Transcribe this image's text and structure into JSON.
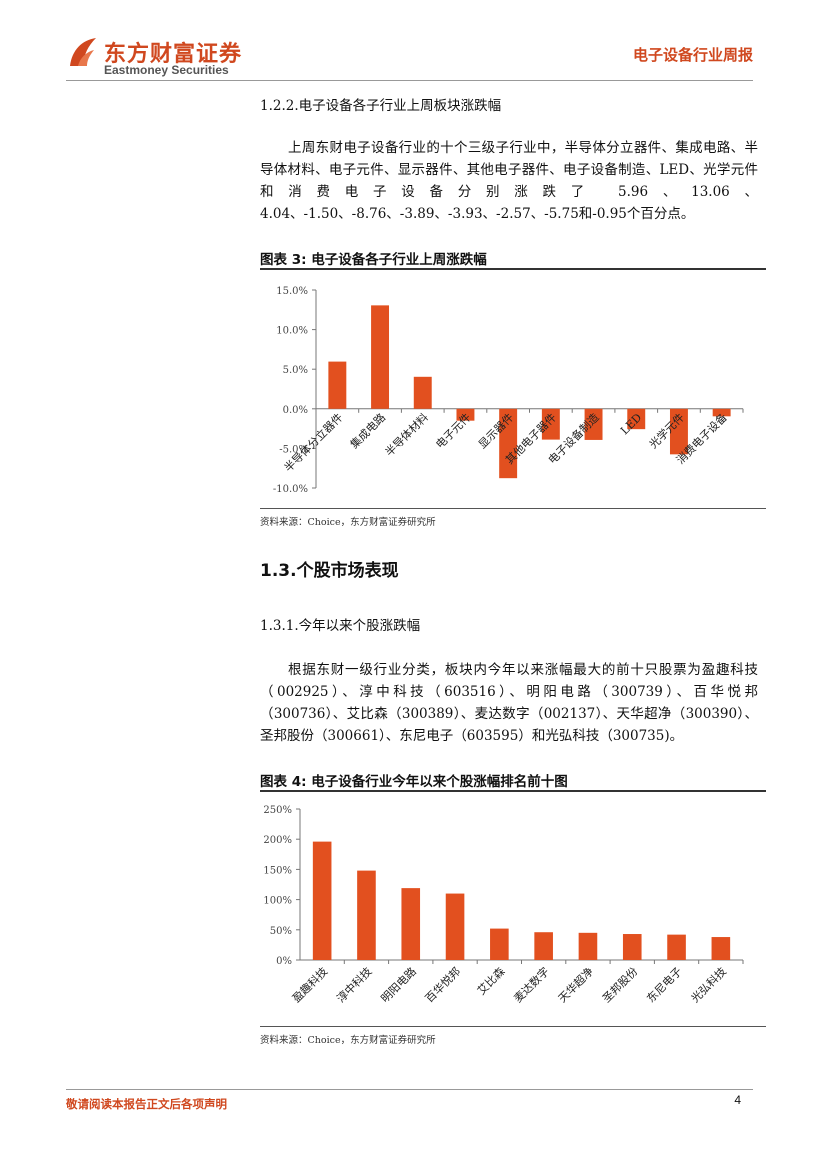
{
  "header": {
    "logo_cn": "东方财富证券",
    "logo_en": "Eastmoney Securities",
    "report_type": "电子设备行业周报"
  },
  "section_1_2_2": {
    "heading": "1.2.2.电子设备各子行业上周板块涨跌幅",
    "paragraph": "上周东财电子设备行业的十个三级子行业中，半导体分立器件、集成电路、半导体材料、电子元件、显示器件、其他电子器件、电子设备制造、LED、光学元件和消费电子设备分别涨跌了 5.96、13.06、4.04、-1.50、-8.76、-3.89、-3.93、-2.57、-5.75和-0.95个百分点。"
  },
  "figure3": {
    "title": "图表 3:  电子设备各子行业上周涨跌幅",
    "source": "资料来源：Choice，东方财富证券研究所"
  },
  "section_1_3": {
    "heading": "1.3.个股市场表现"
  },
  "section_1_3_1": {
    "heading": "1.3.1.今年以来个股涨跌幅",
    "paragraph": "根据东财一级行业分类，板块内今年以来涨幅最大的前十只股票为盈趣科技（002925）、淳中科技（603516）、明阳电路（300739）、百华悦邦（300736）、艾比森（300389）、麦达数字（002137）、天华超净（300390）、圣邦股份（300661）、东尼电子（603595）和光弘科技（300735)。"
  },
  "figure4": {
    "title": "图表 4:  电子设备行业今年以来个股涨幅排名前十图",
    "source": "资料来源：Choice，东方财富证券研究所"
  },
  "footer": {
    "disclaimer": "敬请阅读本报告正文后各项声明",
    "page_number": "4"
  },
  "colors": {
    "accent": "#d0481f",
    "bar": "#e2501f"
  },
  "chart_data": [
    {
      "type": "bar",
      "title": "",
      "xlabel": "",
      "ylabel": "",
      "categories": [
        "半导体分立器件",
        "集成电路",
        "半导体材料",
        "电子元件",
        "显示器件",
        "其他电子器件",
        "电子设备制造",
        "LED",
        "光学元件",
        "消费电子设备"
      ],
      "values": [
        5.96,
        13.06,
        4.04,
        -1.5,
        -8.76,
        -3.89,
        -3.93,
        -2.57,
        -5.75,
        -0.95
      ],
      "unit": "%",
      "ylim": [
        -10,
        15
      ],
      "yticks": [
        "15.0%",
        "10.0%",
        "5.0%",
        "0.0%",
        "-5.0%",
        "-10.0%"
      ],
      "grid": false
    },
    {
      "type": "bar",
      "title": "",
      "xlabel": "",
      "ylabel": "",
      "categories": [
        "盈趣科技",
        "淳中科技",
        "明阳电路",
        "百华悦邦",
        "艾比森",
        "麦达数字",
        "天华超净",
        "圣邦股份",
        "东尼电子",
        "光弘科技"
      ],
      "values": [
        196,
        148,
        119,
        110,
        52,
        46,
        45,
        43,
        42,
        38
      ],
      "unit": "%",
      "ylim": [
        0,
        250
      ],
      "yticks": [
        "250%",
        "200%",
        "150%",
        "100%",
        "50%",
        "0%"
      ],
      "grid": false
    }
  ]
}
